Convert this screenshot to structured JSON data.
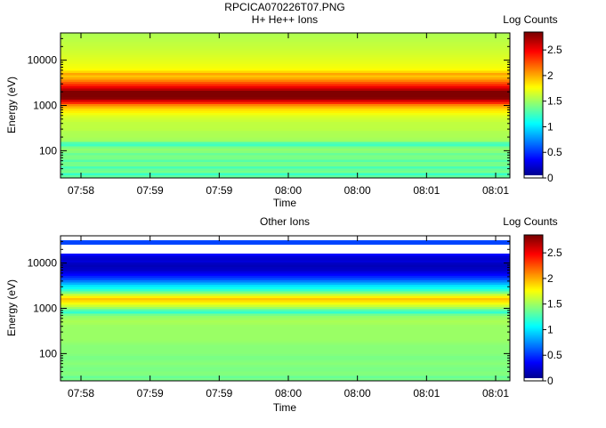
{
  "page_title": "RPCICA070226T07.PNG",
  "chart_data": [
    {
      "type": "heatmap",
      "title": "H+ He++ Ions",
      "xlabel": "Time",
      "ylabel": "Energy (eV)",
      "y_scale": "log",
      "ylim": [
        25,
        40000
      ],
      "yticks": [
        {
          "v": 100,
          "label": "100"
        },
        {
          "v": 1000,
          "label": "1000"
        },
        {
          "v": 10000,
          "label": "10000"
        }
      ],
      "xticks": [
        "07:58",
        "07:59",
        "07:59",
        "08:00",
        "08:00",
        "08:01",
        "08:01"
      ],
      "colorbar": {
        "label": "Log Counts",
        "min": 0,
        "max": 2.85,
        "ticks": [
          {
            "v": 0,
            "label": "0"
          },
          {
            "v": 0.5,
            "label": "0.5"
          },
          {
            "v": 1,
            "label": "1"
          },
          {
            "v": 1.5,
            "label": "1.5"
          },
          {
            "v": 2,
            "label": "2"
          },
          {
            "v": 2.5,
            "label": "2.5"
          }
        ]
      },
      "profile": [
        [
          25,
          1.45
        ],
        [
          30,
          1.2
        ],
        [
          35,
          1.45
        ],
        [
          42,
          1.25
        ],
        [
          50,
          1.45
        ],
        [
          60,
          1.3
        ],
        [
          70,
          1.45
        ],
        [
          85,
          1.35
        ],
        [
          100,
          1.5
        ],
        [
          120,
          1.4
        ],
        [
          140,
          1.15
        ],
        [
          160,
          1.5
        ],
        [
          200,
          1.55
        ],
        [
          250,
          1.55
        ],
        [
          300,
          1.6
        ],
        [
          400,
          1.6
        ],
        [
          500,
          1.65
        ],
        [
          600,
          1.7
        ],
        [
          700,
          1.8
        ],
        [
          850,
          1.9
        ],
        [
          1000,
          2.1
        ],
        [
          1200,
          2.5
        ],
        [
          1400,
          2.8
        ],
        [
          1700,
          2.95
        ],
        [
          2000,
          2.85
        ],
        [
          2400,
          2.6
        ],
        [
          2800,
          2.4
        ],
        [
          3300,
          2.2
        ],
        [
          4000,
          2.0
        ],
        [
          4800,
          1.9
        ],
        [
          5200,
          2.3
        ],
        [
          5600,
          1.8
        ],
        [
          7000,
          1.75
        ],
        [
          10000,
          1.7
        ],
        [
          15000,
          1.65
        ],
        [
          25000,
          1.6
        ],
        [
          40000,
          1.55
        ]
      ]
    },
    {
      "type": "heatmap",
      "title": "Other Ions",
      "xlabel": "Time",
      "ylabel": "Energy (eV)",
      "y_scale": "log",
      "ylim": [
        25,
        40000
      ],
      "yticks": [
        {
          "v": 100,
          "label": "100"
        },
        {
          "v": 1000,
          "label": "1000"
        },
        {
          "v": 10000,
          "label": "10000"
        }
      ],
      "xticks": [
        "07:58",
        "07:59",
        "07:59",
        "08:00",
        "08:00",
        "08:01",
        "08:01"
      ],
      "colorbar": {
        "label": "Log Counts",
        "min": 0,
        "max": 2.85,
        "ticks": [
          {
            "v": 0,
            "label": "0"
          },
          {
            "v": 0.5,
            "label": "0.5"
          },
          {
            "v": 1,
            "label": "1"
          },
          {
            "v": 1.5,
            "label": "1.5"
          },
          {
            "v": 2,
            "label": "2"
          },
          {
            "v": 2.5,
            "label": "2.5"
          }
        ]
      },
      "profile": [
        [
          25,
          1.45
        ],
        [
          30,
          1.35
        ],
        [
          35,
          1.45
        ],
        [
          45,
          1.4
        ],
        [
          60,
          1.45
        ],
        [
          80,
          1.4
        ],
        [
          100,
          1.45
        ],
        [
          150,
          1.45
        ],
        [
          200,
          1.5
        ],
        [
          300,
          1.5
        ],
        [
          400,
          1.5
        ],
        [
          500,
          1.55
        ],
        [
          600,
          1.5
        ],
        [
          700,
          1.45
        ],
        [
          800,
          1.2
        ],
        [
          900,
          1.3
        ],
        [
          1000,
          1.5
        ],
        [
          1200,
          1.7
        ],
        [
          1400,
          1.85
        ],
        [
          1600,
          1.95
        ],
        [
          1800,
          1.8
        ],
        [
          2000,
          1.6
        ],
        [
          2300,
          1.35
        ],
        [
          2600,
          1.15
        ],
        [
          3000,
          1.05
        ],
        [
          3400,
          0.9
        ],
        [
          3800,
          0.75
        ],
        [
          4300,
          0.6
        ],
        [
          5000,
          0.45
        ],
        [
          6000,
          0.3
        ],
        [
          7000,
          0.2
        ],
        [
          9000,
          0.15
        ],
        [
          11000,
          0.25
        ],
        [
          13000,
          0.2
        ],
        [
          15000,
          0.35
        ],
        [
          17000,
          0.45
        ],
        [
          19000,
          null
        ],
        [
          24000,
          null
        ],
        [
          25000,
          0.55
        ],
        [
          31000,
          0.55
        ],
        [
          32000,
          null
        ],
        [
          40000,
          null
        ]
      ]
    }
  ]
}
